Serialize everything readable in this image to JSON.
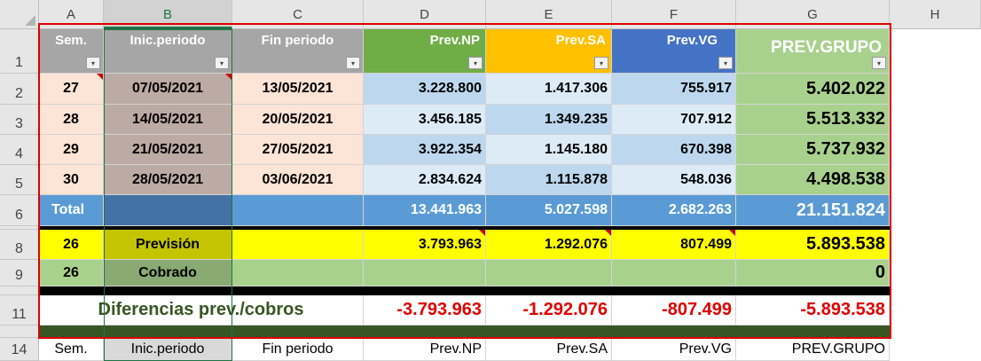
{
  "columns": [
    "A",
    "B",
    "C",
    "D",
    "E",
    "F",
    "G",
    "H"
  ],
  "rows": [
    "1",
    "2",
    "3",
    "4",
    "5",
    "6",
    "8",
    "9",
    "11",
    "14"
  ],
  "header": {
    "sem": "Sem.",
    "inic": "Inic.periodo",
    "fin": "Fin periodo",
    "np": "Prev.NP",
    "sa": "Prev.SA",
    "vg": "Prev.VG",
    "grupo": "PREV.GRUPO",
    "dropdown": "▾"
  },
  "data_rows": [
    {
      "sem": "27",
      "inic": "07/05/2021",
      "fin": "13/05/2021",
      "np": "3.228.800",
      "sa": "1.417.306",
      "vg": "755.917",
      "grupo": "5.402.022"
    },
    {
      "sem": "28",
      "inic": "14/05/2021",
      "fin": "20/05/2021",
      "np": "3.456.185",
      "sa": "1.349.235",
      "vg": "707.912",
      "grupo": "5.513.332"
    },
    {
      "sem": "29",
      "inic": "21/05/2021",
      "fin": "27/05/2021",
      "np": "3.922.354",
      "sa": "1.145.180",
      "vg": "670.398",
      "grupo": "5.737.932"
    },
    {
      "sem": "30",
      "inic": "28/05/2021",
      "fin": "03/06/2021",
      "np": "2.834.624",
      "sa": "1.115.878",
      "vg": "548.036",
      "grupo": "4.498.538"
    }
  ],
  "total": {
    "label": "Total",
    "np": "13.441.963",
    "sa": "5.027.598",
    "vg": "2.682.263",
    "grupo": "21.151.824"
  },
  "prevision": {
    "sem": "26",
    "label": "Previsión",
    "np": "3.793.963",
    "sa": "1.292.076",
    "vg": "807.499",
    "grupo": "5.893.538"
  },
  "cobrado": {
    "sem": "26",
    "label": "Cobrado",
    "grupo": "0"
  },
  "diferencias": {
    "label": "Diferencias prev./cobros",
    "np": "-3.793.963",
    "sa": "-1.292.076",
    "vg": "-807.499",
    "grupo": "-5.893.538"
  },
  "footer": {
    "sem": "Sem.",
    "inic": "Inic.periodo",
    "fin": "Fin periodo",
    "np": "Prev.NP",
    "sa": "Prev.SA",
    "vg": "Prev.VG",
    "grupo": "PREV.GRUPO"
  },
  "colors": {
    "np": "#70ad47",
    "sa": "#ffc000",
    "vg": "#4472c4",
    "grey": "#a6a6a6",
    "total": "#5b9bd5",
    "yellow": "#ffff00",
    "green": "#a9d18e",
    "red": "#e00000"
  }
}
